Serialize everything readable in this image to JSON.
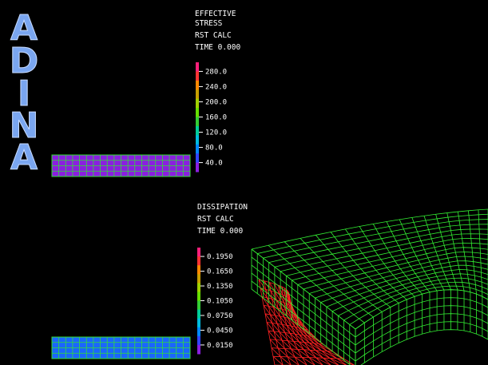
{
  "logo": {
    "letters": [
      "A",
      "D",
      "I",
      "N",
      "A"
    ],
    "color": "#7aa6f0"
  },
  "plot_top": {
    "title_lines": [
      "EFFECTIVE",
      "STRESS",
      "RST CALC",
      "TIME 0.000"
    ],
    "legend": {
      "labels": [
        "280.0",
        "240.0",
        "200.0",
        "160.0",
        "120.0",
        "80.0",
        "40.0"
      ],
      "colors": [
        "#ff1f7a",
        "#ff3333",
        "#ff8800",
        "#c8a000",
        "#a0d000",
        "#66dd00",
        "#33cc33",
        "#00cc99",
        "#00bbdd",
        "#0088ff",
        "#3344ff",
        "#8a1fe0"
      ]
    },
    "mesh_color": "#8a1fe0",
    "mesh_lines": "#33dd33"
  },
  "plot_bottom": {
    "title_lines": [
      "DISSIPATION",
      "RST CALC",
      "TIME 0.000"
    ],
    "legend": {
      "labels": [
        "0.1950",
        "0.1650",
        "0.1350",
        "0.1050",
        "0.0750",
        "0.0450",
        "0.0150"
      ],
      "colors": [
        "#ff1f7a",
        "#ff3333",
        "#ff8800",
        "#c8a000",
        "#a0d000",
        "#66dd00",
        "#33cc33",
        "#00cc99",
        "#00bbdd",
        "#0088ff",
        "#3344ff",
        "#8a1fe0"
      ]
    },
    "mesh_color": "#1a66ff",
    "mesh_lines": "#33dd33"
  },
  "model_3d": {
    "mesh_color": "#33ee33",
    "tool_color": "#ff2222"
  }
}
